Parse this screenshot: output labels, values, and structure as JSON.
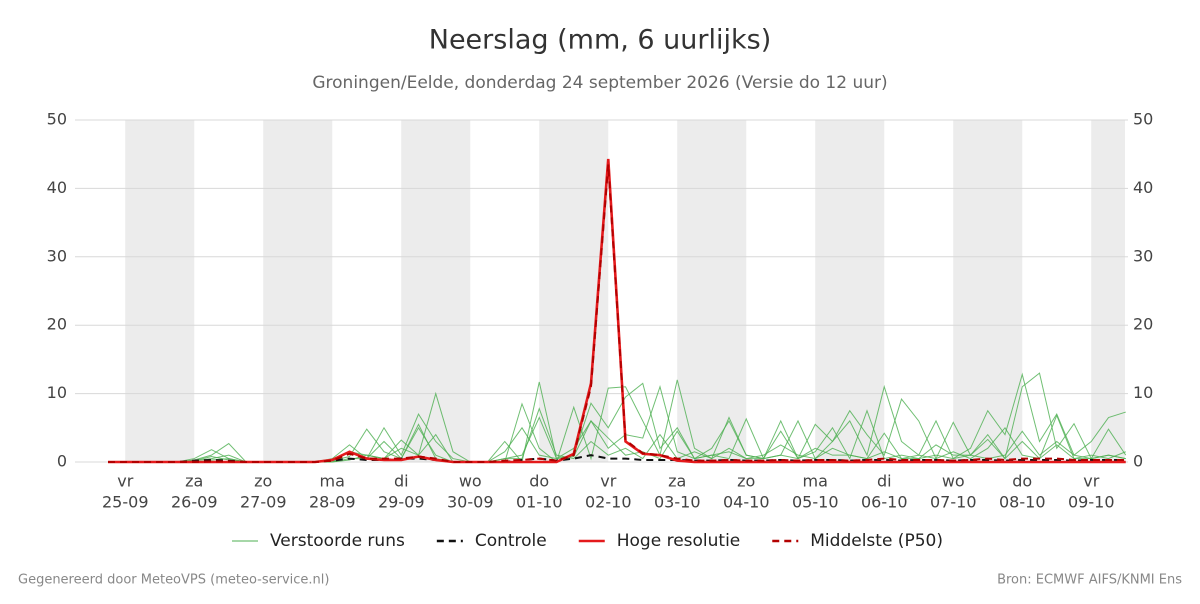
{
  "chart_data": {
    "type": "line",
    "title": "Neerslag (mm, 6 uurlijks)",
    "subtitle": "Groningen/Eelde, donderdag 24 september 2026 (Versie do 12 uur)",
    "footer_left": "Gegenereerd door MeteoVPS (meteo-service.nl)",
    "footer_right": "Bron: ECMWF AIFS/KNMI Ens",
    "categories": [
      null,
      [
        "vr",
        "25-09"
      ],
      null,
      null,
      null,
      [
        "za",
        "26-09"
      ],
      null,
      null,
      null,
      [
        "zo",
        "27-09"
      ],
      null,
      null,
      null,
      [
        "ma",
        "28-09"
      ],
      null,
      null,
      null,
      [
        "di",
        "29-09"
      ],
      null,
      null,
      null,
      [
        "wo",
        "30-09"
      ],
      null,
      null,
      null,
      [
        "do",
        "01-10"
      ],
      null,
      null,
      null,
      [
        "vr",
        "02-10"
      ],
      null,
      null,
      null,
      [
        "za",
        "03-10"
      ],
      null,
      null,
      null,
      [
        "zo",
        "04-10"
      ],
      null,
      null,
      null,
      [
        "ma",
        "05-10"
      ],
      null,
      null,
      null,
      [
        "di",
        "06-10"
      ],
      null,
      null,
      null,
      [
        "wo",
        "07-10"
      ],
      null,
      null,
      null,
      [
        "do",
        "08-10"
      ],
      null,
      null,
      null,
      [
        "vr",
        "09-10"
      ],
      null,
      null
    ],
    "ylim": [
      0,
      50
    ],
    "yticks": [
      0,
      10,
      20,
      30,
      40,
      50
    ],
    "y2lim": [
      0,
      50
    ],
    "y2ticks": [
      0,
      10,
      20,
      30,
      40,
      50
    ],
    "grid": true,
    "ensemble": {
      "name": "Verstoorde runs",
      "color": "#4caf50",
      "members": [
        [
          0,
          0,
          0,
          0,
          0,
          0.5,
          1.8,
          0.5,
          0,
          0,
          0,
          0,
          0,
          0.5,
          2.5,
          0.5,
          5,
          1,
          7,
          3,
          0.5,
          0,
          0,
          0,
          8.5,
          2,
          0,
          8,
          0.5,
          10.8,
          11,
          6,
          1,
          12,
          2,
          0.5,
          6.5,
          1,
          0.5,
          6,
          0.5,
          5.5,
          3,
          6,
          1,
          11,
          3,
          1,
          6,
          0.5,
          2,
          7.5,
          4,
          12.8,
          3,
          7,
          1,
          3,
          6.5,
          7.3
        ],
        [
          0,
          0,
          0,
          0,
          0,
          0.3,
          1,
          2.7,
          0,
          0,
          0,
          0,
          0,
          0,
          1.5,
          1,
          0.5,
          3.2,
          1,
          10,
          1.5,
          0,
          0,
          3,
          0,
          11.7,
          0.5,
          1,
          8.6,
          5,
          9.5,
          11.5,
          2,
          5,
          0.5,
          1,
          0.5,
          6.3,
          0.5,
          1,
          6,
          0.5,
          3,
          7.5,
          4,
          1,
          9.2,
          6,
          0.5,
          5.8,
          1,
          3.3,
          0.5,
          11,
          13,
          2,
          5.6,
          0.5,
          4.8,
          1
        ],
        [
          0,
          0,
          0,
          0,
          0,
          0.2,
          0.8,
          0.3,
          0,
          0,
          0,
          0,
          0,
          0.2,
          0.8,
          4.8,
          1.5,
          0.5,
          5.5,
          0.5,
          0,
          0,
          0,
          0.5,
          1,
          6.5,
          0.5,
          0.8,
          6,
          2,
          4,
          3.5,
          11,
          1.5,
          0.5,
          2,
          6,
          1,
          0.5,
          4.5,
          0.5,
          1.5,
          5,
          0.5,
          7.5,
          0.5,
          1,
          0.5,
          2.5,
          1,
          1,
          4,
          0.5,
          3,
          0.5,
          6.8,
          0.5,
          1,
          0.5,
          1.5
        ],
        [
          0,
          0,
          0,
          0,
          0,
          0.2,
          0.5,
          1,
          0,
          0,
          0,
          0,
          0,
          0,
          0.3,
          1,
          0.5,
          2,
          1,
          4,
          0,
          0,
          0,
          0.5,
          0.5,
          7.8,
          1,
          0.5,
          3,
          1,
          2,
          0.5,
          4,
          0.5,
          1.5,
          0.5,
          2,
          0.5,
          1,
          2.5,
          1,
          0.5,
          2,
          1,
          0.5,
          4.2,
          0.5,
          1,
          0.5,
          1.5,
          0.5,
          2,
          5,
          1,
          0.5,
          2.5,
          0.5,
          0.5,
          1,
          0.5
        ],
        [
          0,
          0,
          0,
          0,
          0,
          0,
          0.3,
          0.5,
          0,
          0,
          0,
          0,
          0,
          0,
          0.5,
          0.5,
          3,
          0.5,
          5,
          1,
          0,
          0,
          0,
          1.5,
          5,
          1,
          0.5,
          2,
          6,
          3.5,
          1,
          1.5,
          0.5,
          4.5,
          0.5,
          1,
          1.5,
          0.5,
          0.5,
          1,
          0.5,
          2,
          1,
          1,
          0.5,
          1.5,
          0.5,
          0.5,
          1,
          0.5,
          1,
          0.5,
          1,
          4.5,
          1,
          3,
          1,
          0.5,
          1,
          0.5
        ]
      ]
    },
    "series": [
      {
        "name": "Controle",
        "color": "#111111",
        "dash": true,
        "values": [
          0,
          0,
          0,
          0,
          0,
          0.2,
          0.3,
          0.2,
          0,
          0,
          0,
          0,
          0,
          0.2,
          0.5,
          0.3,
          0.3,
          0.5,
          0.5,
          0.3,
          0,
          0,
          0,
          0,
          0.3,
          0.5,
          0.2,
          0.5,
          1,
          0.5,
          0.5,
          0.3,
          0.3,
          0.3,
          0.2,
          0.2,
          0.3,
          0.2,
          0.2,
          0.3,
          0.2,
          0.3,
          0.3,
          0.2,
          0.3,
          0.3,
          0.2,
          0.3,
          0.3,
          0.2,
          0.3,
          0.3,
          0.2,
          0.3,
          0.3,
          0.3,
          0.2,
          0.3,
          0.3,
          0.3
        ]
      },
      {
        "name": "Hoge resolutie",
        "color": "#e41a1c",
        "dash": false,
        "values": [
          0,
          0,
          0,
          0,
          0,
          0,
          0,
          0,
          0,
          0,
          0,
          0,
          0,
          0.3,
          1.5,
          0.5,
          0.3,
          0.3,
          0.8,
          0.3,
          0,
          0,
          0,
          0,
          0,
          0,
          0,
          1.2,
          11.5,
          44.3,
          3,
          1.2,
          1,
          0.2,
          0,
          0,
          0,
          0,
          0,
          0,
          0,
          0,
          0,
          0,
          0,
          0,
          0,
          0,
          0,
          0,
          0,
          0,
          0,
          0,
          0,
          0,
          0,
          0,
          0,
          0
        ]
      },
      {
        "name": "Middelste (P50)",
        "color": "#b30000",
        "dash": true,
        "values": [
          0,
          0,
          0,
          0,
          0,
          0,
          0.1,
          0.1,
          0,
          0,
          0,
          0,
          0,
          0.2,
          1.2,
          0.5,
          0.5,
          0.5,
          0.8,
          0.5,
          0,
          0,
          0,
          0.2,
          0.3,
          0.5,
          0.2,
          1,
          11,
          43.5,
          3.2,
          1.3,
          1,
          0.5,
          0.2,
          0.2,
          0.3,
          0.2,
          0.2,
          0.3,
          0.2,
          0.3,
          0.3,
          0.2,
          0.3,
          0.5,
          0.3,
          0.3,
          0.3,
          0.2,
          0.3,
          0.5,
          0.3,
          0.5,
          0.5,
          0.5,
          0.3,
          0.3,
          0.3,
          0.3
        ]
      }
    ]
  }
}
